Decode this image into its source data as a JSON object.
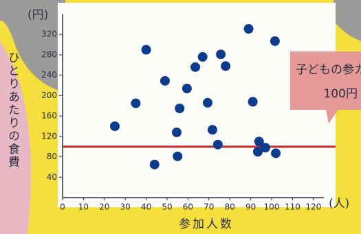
{
  "chart_data": {
    "type": "scatter",
    "y_label": "ひとりあたりの食費",
    "y_unit": "(円)",
    "x_label": "参加人数",
    "x_unit": "(人)",
    "annotation": [
      "子どもの参カ",
      "100円"
    ],
    "reference_line": 100,
    "reference_color": "#cc2a2a",
    "color": "#0d3b8e",
    "x": [
      25,
      35,
      40,
      44,
      49,
      54.6,
      55,
      56,
      59.5,
      63.5,
      67,
      69.4,
      71.7,
      74.3,
      75.7,
      78,
      89,
      91,
      93.4,
      94,
      97,
      101.6,
      102
    ],
    "values": [
      140,
      185,
      290,
      65,
      229,
      128,
      81,
      175,
      214,
      256,
      276,
      186,
      133,
      104,
      281,
      258,
      331,
      188,
      90,
      110,
      98,
      307,
      87
    ],
    "xlim": [
      0,
      125
    ],
    "ylim": [
      0,
      360
    ],
    "xticks": [
      0,
      10,
      20,
      30,
      40,
      50,
      60,
      70,
      80,
      90,
      100,
      110,
      120
    ],
    "yticks": [
      40,
      80,
      120,
      160,
      200,
      240,
      280,
      320
    ]
  }
}
